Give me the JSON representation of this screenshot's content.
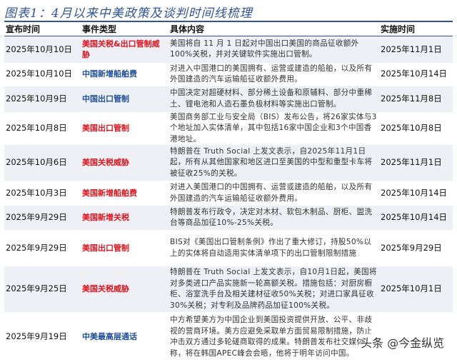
{
  "title": "图表1：4月以来中美政策及谈判时间线梳理",
  "headers": {
    "date": "宣布时间",
    "type": "事件类型",
    "content": "具体内容",
    "impl": "实施时间"
  },
  "colors": {
    "us_event": "#e0141e",
    "cn_event": "#1f4e99",
    "title": "#2f5597"
  },
  "rows": [
    {
      "date": "2025年10月10日",
      "type": "美国关税&出口管制威胁",
      "type_side": "us",
      "content": "美国将自 11 月 1 日起对中国出口美国的商品征收额外100%关税，并对关键软件实施出口管制。",
      "impl": "2025年11月1日"
    },
    {
      "date": "2025年10月10日",
      "type": "中国新增船舶费",
      "type_side": "cn",
      "content": "对进入中国港口的美国拥有、运营或建造的船舶，以及所有外国建造的汽车运输船征收额外费用。",
      "impl": "2025年10月14日"
    },
    {
      "date": "2025年10月9日",
      "type": "中国出口管制",
      "type_side": "cn",
      "content": "中国决定对超硬材料、部分稀土设备和原辅料、部分中重稀土、锂电池和人造石墨负极材料等实施出口管制。",
      "impl": "2025年11月8日"
    },
    {
      "date": "2025年10月8日",
      "type": "美国出口管制",
      "type_side": "us",
      "content": "美国商务部工业与安全局（BIS）发布公告，将26家实体与3个地址加入实体清单，其中包括16家中国企业和3个中国香港地址。",
      "impl": "2025年10月8日"
    },
    {
      "date": "2025年10月6日",
      "type": "美国关税威胁",
      "type_side": "us",
      "content": "特朗普在 Truth Social 上发文表示，自2025年11月1日起，所有从其他国家和地区进口至美国的中型和重型卡车将被征收25%的关税。",
      "impl": "2025年11月1日"
    },
    {
      "date": "2025年10月3日",
      "type": "美国新增船舶费",
      "type_side": "us",
      "content": "对进入美国港口的中国拥有、运营或建造的船舶，以及所有外国建造的汽车运输船征收额外费用。",
      "impl": "2025年10月14日"
    },
    {
      "date": "2025年9月29日",
      "type": "美国新增关税",
      "type_side": "us",
      "content": "特朗普发布行政令，决定对木材、软包木制品、厨柜、盥洗台等商品加征10%-25%关税。",
      "impl": "2025年10月14日"
    },
    {
      "date": "2025年9月29日",
      "type": "美国出口管制",
      "type_side": "us",
      "content": "BIS对《美国出口管制条例》作出了重大修订，持股50%以上的实体将自动适用实体清单项下的出口管制限制措施",
      "impl": "2025年9月29日"
    },
    {
      "date": "2025年9月25日",
      "type": "美国关税威胁",
      "type_side": "us",
      "content": "特朗普在 Truth Social 上发文表示，自10月1日起，美国将对多类进口产品实施新一轮高额关税。措施包括：对厨房橱柜、浴室洗手台及相关建材征收50%关税；对进口家具征收30%关税；对专利及品牌药品加征100%关税。",
      "impl": "2025年10月1日"
    },
    {
      "date": "2025年9月19日",
      "type": "中美最高层通话",
      "type_side": "cn",
      "content": "中方希望美方为中国企业到美国投资提供开放、公平、非歧视的营商环境。美方应避免采取单方面贸易限制措施，防止冲击双方通过多轮磋商取得的成果。特朗普发布社交媒体称，将在韩国APEC峰会会晤，他将于明年访问中国。",
      "impl": ""
    }
  ],
  "watermark": "头条 @今金纵览"
}
